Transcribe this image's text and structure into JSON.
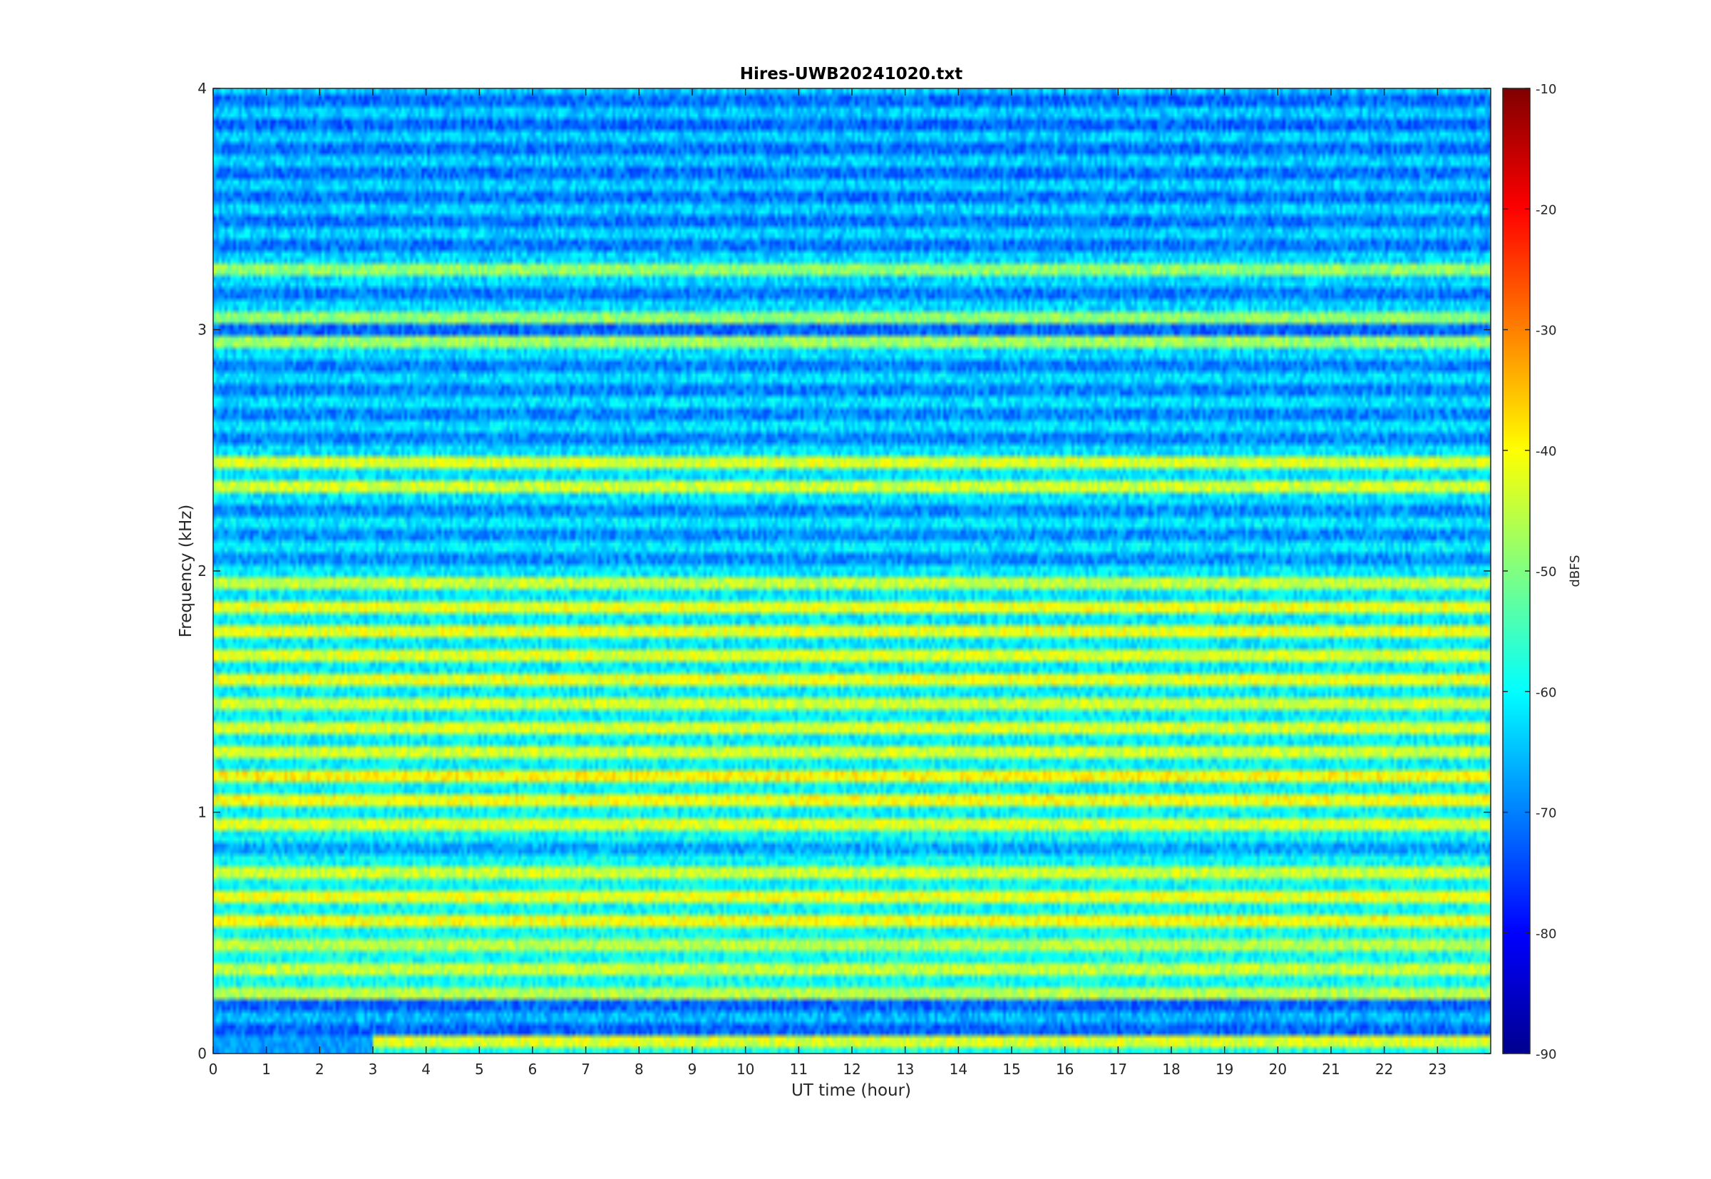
{
  "chart_data": {
    "type": "heatmap",
    "title": "Hires-UWB20241020.txt",
    "xlabel": "UT time (hour)",
    "ylabel": "Frequency (kHz)",
    "colorbar_label": "dBFS",
    "xlim": [
      0,
      24
    ],
    "ylim": [
      0,
      4
    ],
    "clim": [
      -90,
      -10
    ],
    "colormap": "jet",
    "x_ticks": [
      "0",
      "1",
      "2",
      "3",
      "4",
      "5",
      "6",
      "7",
      "8",
      "9",
      "10",
      "11",
      "12",
      "13",
      "14",
      "15",
      "16",
      "17",
      "18",
      "19",
      "20",
      "21",
      "22",
      "23"
    ],
    "y_ticks": [
      "0",
      "1",
      "2",
      "3",
      "4"
    ],
    "colorbar_ticks": [
      "-90",
      "-80",
      "-70",
      "-60",
      "-50",
      "-40",
      "-30",
      "-20",
      "-10"
    ],
    "band_spacing_khz": 0.1,
    "baseline_dbfs": -62,
    "strong_bands_khz": [
      {
        "f": 0.05,
        "dbfs": -45
      },
      {
        "f": 0.25,
        "dbfs": -48
      },
      {
        "f": 0.35,
        "dbfs": -47
      },
      {
        "f": 0.45,
        "dbfs": -48
      },
      {
        "f": 0.55,
        "dbfs": -43
      },
      {
        "f": 0.65,
        "dbfs": -44
      },
      {
        "f": 0.75,
        "dbfs": -46
      },
      {
        "f": 0.95,
        "dbfs": -45
      },
      {
        "f": 1.05,
        "dbfs": -43
      },
      {
        "f": 1.15,
        "dbfs": -42
      },
      {
        "f": 1.25,
        "dbfs": -46
      },
      {
        "f": 1.35,
        "dbfs": -45
      },
      {
        "f": 1.45,
        "dbfs": -46
      },
      {
        "f": 1.55,
        "dbfs": -44
      },
      {
        "f": 1.65,
        "dbfs": -45
      },
      {
        "f": 1.75,
        "dbfs": -44
      },
      {
        "f": 1.85,
        "dbfs": -44
      },
      {
        "f": 1.95,
        "dbfs": -47
      },
      {
        "f": 2.35,
        "dbfs": -46
      },
      {
        "f": 2.45,
        "dbfs": -45
      },
      {
        "f": 2.95,
        "dbfs": -50
      },
      {
        "f": 3.05,
        "dbfs": -51
      },
      {
        "f": 3.25,
        "dbfs": -51
      }
    ],
    "weak_bands_khz": [
      0.1,
      0.2,
      3.0,
      3.85
    ],
    "colorbar_colors": [
      "#00008f",
      "#0000ff",
      "#0080ff",
      "#00ffff",
      "#80ff80",
      "#ffff00",
      "#ff8000",
      "#ff0000",
      "#800000"
    ]
  }
}
